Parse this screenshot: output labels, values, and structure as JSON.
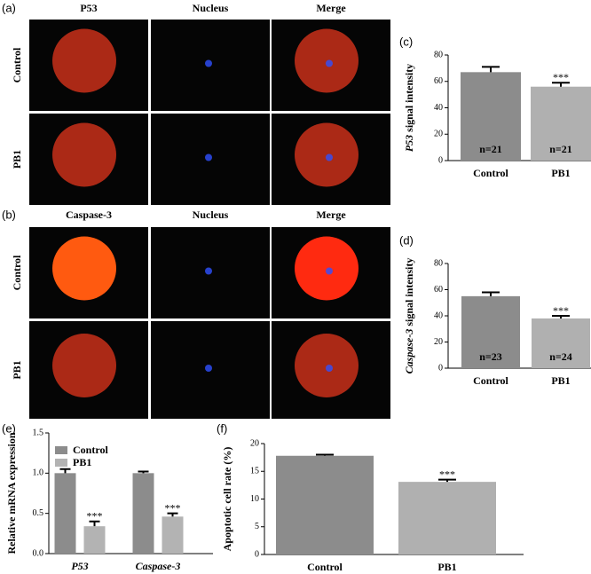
{
  "figure": {
    "panels": [
      {
        "label": "(a)",
        "columns": [
          "P53",
          "Nucleus",
          "Merge"
        ],
        "rows": [
          "Control",
          "PB1"
        ]
      },
      {
        "label": "(b)",
        "columns": [
          "Caspase-3",
          "Nucleus",
          "Merge"
        ],
        "rows": [
          "Control",
          "PB1"
        ]
      }
    ]
  },
  "chart_data": [
    {
      "type": "bar",
      "label": "(c)",
      "ylabel_italic": "P53",
      "ylabel": "signal   intensity",
      "categories": [
        "Control",
        "PB1"
      ],
      "values": [
        67,
        56
      ],
      "errors": [
        4,
        3
      ],
      "n_labels": [
        "n=21",
        "n=21"
      ],
      "colors": [
        "#8c8c8c",
        "#b0b0b0"
      ],
      "significance": "***",
      "ylim": [
        0,
        80
      ],
      "yticks": [
        0,
        20,
        40,
        60,
        80
      ]
    },
    {
      "type": "bar",
      "label": "(d)",
      "ylabel_italic": "Caspase-3",
      "ylabel": "signal intensity",
      "categories": [
        "Control",
        "PB1"
      ],
      "values": [
        55,
        38
      ],
      "errors": [
        3,
        2
      ],
      "n_labels": [
        "n=23",
        "n=24"
      ],
      "colors": [
        "#8c8c8c",
        "#b0b0b0"
      ],
      "significance": "***",
      "ylim": [
        0,
        80
      ],
      "yticks": [
        0,
        20,
        40,
        60,
        80
      ]
    },
    {
      "type": "grouped-bar",
      "label": "(e)",
      "ylabel": "Relative mRNA expression",
      "categories": [
        "P53",
        "Caspase-3"
      ],
      "series": [
        {
          "name": "Control",
          "color": "#8c8c8c",
          "values": [
            1.0,
            1.0
          ],
          "errors": [
            0.05,
            0.02
          ]
        },
        {
          "name": "PB1",
          "color": "#b3b3b3",
          "values": [
            0.34,
            0.46
          ],
          "errors": [
            0.06,
            0.04
          ]
        }
      ],
      "significance": "***",
      "ylim": [
        0,
        1.5
      ],
      "yticks": [
        {
          "value": 0,
          "label": "0.0"
        },
        {
          "value": 0.5,
          "label": "0.5"
        },
        {
          "value": 1,
          "label": "1.0"
        },
        {
          "value": 1.5,
          "label": "1.5"
        }
      ]
    },
    {
      "type": "bar",
      "label": "(f)",
      "ylabel": "Apoptotic cell rate (%)",
      "categories": [
        "Control",
        "PB1"
      ],
      "values": [
        17.8,
        13.1
      ],
      "errors": [
        0.2,
        0.4
      ],
      "colors": [
        "#8c8c8c",
        "#b0b0b0"
      ],
      "significance": "***",
      "ylim": [
        0,
        20
      ],
      "yticks": [
        0,
        5,
        10,
        15,
        20
      ]
    }
  ]
}
